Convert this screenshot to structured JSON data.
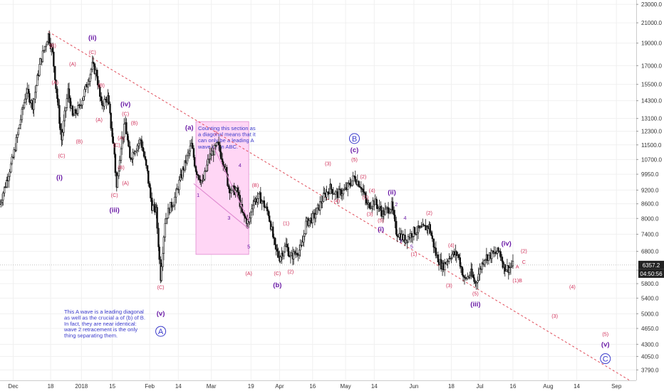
{
  "colors": {
    "bg": "#ffffff",
    "grid": "#f0f0f0",
    "axis_text": "#333333",
    "candle": "#111111",
    "trendline": "#e04d5a",
    "box_fill": "#ffd6f5",
    "box_stroke": "#e08ad0",
    "label_red": "#d0315a",
    "label_purple": "#6a1aa6",
    "label_blue": "#3a3acb",
    "price_tag_bg": "#222222",
    "price_tag_text": "#ffffff"
  },
  "chart_data": {
    "type": "candlestick",
    "title": "",
    "y_scale": "log",
    "ylim": [
      3600,
      23500
    ],
    "y_ticks": [
      23000.0,
      21000.0,
      19000.0,
      17000.0,
      15500.0,
      14300.0,
      13100.0,
      12300.0,
      11500.0,
      10700.0,
      9950.0,
      9200.0,
      8600.0,
      8000.0,
      7400.0,
      6800.0,
      6200.0,
      5800.0,
      5400.0,
      5000.0,
      4650.0,
      4300.0,
      4050.0,
      3790.0
    ],
    "y_tick_labels": [
      "23000.0",
      "21000.0",
      "19000.0",
      "17000.0",
      "15500.0",
      "14300.0",
      "13100.0",
      "12300.0",
      "11500.0",
      "10700.0",
      "9950.0",
      "9200.0",
      "8600.0",
      "8000.0",
      "7400.0",
      "6800.0",
      "6200.0",
      "5800.0",
      "5400.0",
      "5000.0",
      "4650.0",
      "4300.0",
      "4050.0",
      "3790.0"
    ],
    "x_range": [
      "2017-11-25",
      "2018-09-10"
    ],
    "x_ticks": [
      {
        "label": "Dec",
        "date": "2017-12-01"
      },
      {
        "label": "18",
        "date": "2017-12-18"
      },
      {
        "label": "2018",
        "date": "2018-01-01"
      },
      {
        "label": "15",
        "date": "2018-01-15"
      },
      {
        "label": "Feb",
        "date": "2018-02-01"
      },
      {
        "label": "14",
        "date": "2018-02-14"
      },
      {
        "label": "Mar",
        "date": "2018-03-01"
      },
      {
        "label": "19",
        "date": "2018-03-19"
      },
      {
        "label": "Apr",
        "date": "2018-04-01"
      },
      {
        "label": "16",
        "date": "2018-04-16"
      },
      {
        "label": "May",
        "date": "2018-05-01"
      },
      {
        "label": "14",
        "date": "2018-05-14"
      },
      {
        "label": "Jun",
        "date": "2018-06-01"
      },
      {
        "label": "18",
        "date": "2018-06-18"
      },
      {
        "label": "Jul",
        "date": "2018-07-01"
      },
      {
        "label": "16",
        "date": "2018-07-16"
      },
      {
        "label": "Aug",
        "date": "2018-08-01"
      },
      {
        "label": "14",
        "date": "2018-08-14"
      },
      {
        "label": "Sep",
        "date": "2018-09-01"
      }
    ],
    "price_path": [
      [
        "2017-11-25",
        8600
      ],
      [
        "2017-12-01",
        10800
      ],
      [
        "2017-12-07",
        15000
      ],
      [
        "2017-12-10",
        14000
      ],
      [
        "2017-12-13",
        17000
      ],
      [
        "2017-12-17",
        19800
      ],
      [
        "2017-12-19",
        18000
      ],
      [
        "2017-12-22",
        13000
      ],
      [
        "2017-12-23",
        11800
      ],
      [
        "2017-12-26",
        15000
      ],
      [
        "2017-12-28",
        13200
      ],
      [
        "2017-12-31",
        13800
      ],
      [
        "2018-01-03",
        15200
      ],
      [
        "2018-01-06",
        17000
      ],
      [
        "2018-01-08",
        16300
      ],
      [
        "2018-01-10",
        14000
      ],
      [
        "2018-01-13",
        14500
      ],
      [
        "2018-01-16",
        11000
      ],
      [
        "2018-01-17",
        9300
      ],
      [
        "2018-01-19",
        11500
      ],
      [
        "2018-01-21",
        12800
      ],
      [
        "2018-01-23",
        10700
      ],
      [
        "2018-01-25",
        11200
      ],
      [
        "2018-01-28",
        11800
      ],
      [
        "2018-01-31",
        10000
      ],
      [
        "2018-02-02",
        8500
      ],
      [
        "2018-02-04",
        8300
      ],
      [
        "2018-02-06",
        6000
      ],
      [
        "2018-02-08",
        7900
      ],
      [
        "2018-02-10",
        8400
      ],
      [
        "2018-02-12",
        8700
      ],
      [
        "2018-02-16",
        10100
      ],
      [
        "2018-02-20",
        11500
      ],
      [
        "2018-02-22",
        10200
      ],
      [
        "2018-02-25",
        9500
      ],
      [
        "2018-02-28",
        10800
      ],
      [
        "2018-03-04",
        11500
      ],
      [
        "2018-03-07",
        10400
      ],
      [
        "2018-03-09",
        9300
      ],
      [
        "2018-03-13",
        9100
      ],
      [
        "2018-03-15",
        8200
      ],
      [
        "2018-03-18",
        7800
      ],
      [
        "2018-03-20",
        8700
      ],
      [
        "2018-03-23",
        8900
      ],
      [
        "2018-03-27",
        8200
      ],
      [
        "2018-03-30",
        6900
      ],
      [
        "2018-04-01",
        6600
      ],
      [
        "2018-04-04",
        7000
      ],
      [
        "2018-04-06",
        6600
      ],
      [
        "2018-04-09",
        6800
      ],
      [
        "2018-04-11",
        6900
      ],
      [
        "2018-04-13",
        7800
      ],
      [
        "2018-04-17",
        8100
      ],
      [
        "2018-04-21",
        8900
      ],
      [
        "2018-04-24",
        9300
      ],
      [
        "2018-04-27",
        9000
      ],
      [
        "2018-05-01",
        9200
      ],
      [
        "2018-05-05",
        9800
      ],
      [
        "2018-05-08",
        9400
      ],
      [
        "2018-05-11",
        8500
      ],
      [
        "2018-05-14",
        8700
      ],
      [
        "2018-05-18",
        8200
      ],
      [
        "2018-05-22",
        8500
      ],
      [
        "2018-05-24",
        7500
      ],
      [
        "2018-05-28",
        7200
      ],
      [
        "2018-06-01",
        7500
      ],
      [
        "2018-06-05",
        7600
      ],
      [
        "2018-06-08",
        7700
      ],
      [
        "2018-06-11",
        6700
      ],
      [
        "2018-06-14",
        6300
      ],
      [
        "2018-06-18",
        6700
      ],
      [
        "2018-06-21",
        6700
      ],
      [
        "2018-06-24",
        5900
      ],
      [
        "2018-06-27",
        6100
      ],
      [
        "2018-06-29",
        5800
      ],
      [
        "2018-07-03",
        6600
      ],
      [
        "2018-07-07",
        6700
      ],
      [
        "2018-07-10",
        6800
      ],
      [
        "2018-07-12",
        6300
      ],
      [
        "2018-07-14",
        6250
      ],
      [
        "2018-07-16",
        6357
      ]
    ],
    "current_price": "6357.2",
    "time_tag": "04:50:56",
    "trendline": {
      "start": [
        "2017-12-17",
        20100
      ],
      "end": [
        "2018-09-07",
        3600
      ]
    },
    "highlight_box": {
      "from": [
        "2018-02-22",
        12900
      ],
      "to": [
        "2018-03-18",
        6700
      ]
    },
    "diagonal_lines": [
      [
        [
          "2018-02-21",
          9500
        ],
        [
          "2018-03-18",
          7600
        ]
      ],
      [
        [
          "2018-03-02",
          11400
        ],
        [
          "2018-03-18",
          7900
        ]
      ]
    ],
    "box_text": [
      "Counting this section as",
      "a diagonal means that it",
      "can only be a leading A",
      "wave of an ABC."
    ],
    "note_text": [
      "This A wave is a leading diagonal",
      "as well as the crucial a of (b) of B.",
      "In fact, they are near identical:",
      "wave 2 retracement is the only",
      "thing separating them."
    ],
    "labels": [
      {
        "t": "(B)",
        "d": "2017-12-19",
        "p": 18600,
        "c": "red"
      },
      {
        "t": "(A)",
        "d": "2017-12-20",
        "p": 15500,
        "c": "red"
      },
      {
        "t": "(C)",
        "d": "2017-12-23",
        "p": 10800,
        "c": "red"
      },
      {
        "t": "(i)",
        "d": "2017-12-22",
        "p": 9700,
        "c": "purple",
        "b": true
      },
      {
        "t": "(A)",
        "d": "2017-12-28",
        "p": 17000,
        "c": "red"
      },
      {
        "t": "(B)",
        "d": "2017-12-31",
        "p": 11600,
        "c": "red"
      },
      {
        "t": "(ii)",
        "d": "2018-01-06",
        "p": 19300,
        "c": "purple",
        "b": true
      },
      {
        "t": "(C)",
        "d": "2018-01-06",
        "p": 18000,
        "c": "red"
      },
      {
        "t": "(B)",
        "d": "2018-01-10",
        "p": 15300,
        "c": "red"
      },
      {
        "t": "(A)",
        "d": "2018-01-09",
        "p": 12900,
        "c": "red"
      },
      {
        "t": "(iv)",
        "d": "2018-01-21",
        "p": 13900,
        "c": "purple",
        "b": true
      },
      {
        "t": "(C)",
        "d": "2018-01-21",
        "p": 13300,
        "c": "red"
      },
      {
        "t": "(A)",
        "d": "2018-01-19",
        "p": 11800,
        "c": "red"
      },
      {
        "t": "(B)",
        "d": "2018-01-25",
        "p": 12700,
        "c": "red"
      },
      {
        "t": "(C)",
        "d": "2018-01-17",
        "p": 11400,
        "c": "red"
      },
      {
        "t": "(B)",
        "d": "2018-01-19",
        "p": 10200,
        "c": "red"
      },
      {
        "t": "(A)",
        "d": "2018-01-21",
        "p": 9450,
        "c": "red"
      },
      {
        "t": "(C)",
        "d": "2018-01-16",
        "p": 8900,
        "c": "red"
      },
      {
        "t": "(iii)",
        "d": "2018-01-16",
        "p": 8250,
        "c": "purple",
        "b": true
      },
      {
        "t": "(C)",
        "d": "2018-02-06",
        "p": 5650,
        "c": "red"
      },
      {
        "t": "(v)",
        "d": "2018-02-06",
        "p": 4950,
        "c": "purple",
        "b": true
      },
      {
        "t": "A",
        "d": "2018-02-06",
        "p": 4520,
        "c": "blue",
        "circle": true
      },
      {
        "t": "(a)",
        "d": "2018-02-19",
        "p": 12400,
        "c": "purple",
        "b": true
      },
      {
        "t": "2",
        "d": "2018-03-03",
        "p": 12100,
        "c": "red"
      },
      {
        "t": "4",
        "d": "2018-03-14",
        "p": 10300,
        "c": "purple"
      },
      {
        "t": "1",
        "d": "2018-02-23",
        "p": 8900,
        "c": "purple"
      },
      {
        "t": "3",
        "d": "2018-03-09",
        "p": 7950,
        "c": "purple"
      },
      {
        "t": "5",
        "d": "2018-03-18",
        "p": 6900,
        "c": "purple"
      },
      {
        "t": "(B)",
        "d": "2018-03-21",
        "p": 9350,
        "c": "red"
      },
      {
        "t": "(A)",
        "d": "2018-03-18",
        "p": 6050,
        "c": "red"
      },
      {
        "t": "(1)",
        "d": "2018-04-04",
        "p": 7750,
        "c": "red"
      },
      {
        "t": "(C)",
        "d": "2018-03-31",
        "p": 6050,
        "c": "red"
      },
      {
        "t": "(2)",
        "d": "2018-04-06",
        "p": 6100,
        "c": "red"
      },
      {
        "t": "(b)",
        "d": "2018-03-31",
        "p": 5700,
        "c": "purple",
        "b": true
      },
      {
        "t": "(3)",
        "d": "2018-04-23",
        "p": 10400,
        "c": "red"
      },
      {
        "t": "(4)",
        "d": "2018-04-27",
        "p": 8650,
        "c": "red"
      },
      {
        "t": "(5)",
        "d": "2018-05-05",
        "p": 10600,
        "c": "red"
      },
      {
        "t": "(c)",
        "d": "2018-05-05",
        "p": 11100,
        "c": "purple",
        "b": true
      },
      {
        "t": "B",
        "d": "2018-05-05",
        "p": 11700,
        "c": "blue",
        "circle": true
      },
      {
        "t": "(2)",
        "d": "2018-05-09",
        "p": 9750,
        "c": "red"
      },
      {
        "t": "(4)",
        "d": "2018-05-13",
        "p": 9100,
        "c": "red"
      },
      {
        "t": "(1)",
        "d": "2018-05-10",
        "p": 8800,
        "c": "red"
      },
      {
        "t": "(3)",
        "d": "2018-05-12",
        "p": 8100,
        "c": "red"
      },
      {
        "t": "(5)",
        "d": "2018-05-17",
        "p": 7850,
        "c": "red"
      },
      {
        "t": "(i)",
        "d": "2018-05-17",
        "p": 7500,
        "c": "purple",
        "b": true
      },
      {
        "t": "(ii)",
        "d": "2018-05-22",
        "p": 9000,
        "c": "purple",
        "b": true
      },
      {
        "t": "2",
        "d": "2018-05-24",
        "p": 8500,
        "c": "purple"
      },
      {
        "t": "4",
        "d": "2018-05-28",
        "p": 7950,
        "c": "purple"
      },
      {
        "t": "3",
        "d": "2018-05-26",
        "p": 7100,
        "c": "purple"
      },
      {
        "t": "5",
        "d": "2018-05-31",
        "p": 6900,
        "c": "purple"
      },
      {
        "t": "(1)",
        "d": "2018-06-01",
        "p": 6650,
        "c": "red"
      },
      {
        "t": "(2)",
        "d": "2018-06-08",
        "p": 8150,
        "c": "red"
      },
      {
        "t": "(4)",
        "d": "2018-06-18",
        "p": 6950,
        "c": "red"
      },
      {
        "t": "(3)",
        "d": "2018-06-17",
        "p": 5700,
        "c": "red"
      },
      {
        "t": "(5)",
        "d": "2018-06-29",
        "p": 5470,
        "c": "red"
      },
      {
        "t": "(iii)",
        "d": "2018-06-29",
        "p": 5180,
        "c": "purple",
        "b": true
      },
      {
        "t": "(iv)",
        "d": "2018-07-13",
        "p": 7000,
        "c": "purple",
        "b": true
      },
      {
        "t": "(2)",
        "d": "2018-07-21",
        "p": 6750,
        "c": "red"
      },
      {
        "t": "C",
        "d": "2018-07-21",
        "p": 6400,
        "c": "red"
      },
      {
        "t": "A",
        "d": "2018-07-18",
        "p": 6250,
        "c": "red"
      },
      {
        "t": "(1)B",
        "d": "2018-07-18",
        "p": 5840,
        "c": "red"
      },
      {
        "t": "(4)",
        "d": "2018-08-12",
        "p": 5660,
        "c": "red"
      },
      {
        "t": "(3)",
        "d": "2018-08-04",
        "p": 4900,
        "c": "red"
      },
      {
        "t": "(5)",
        "d": "2018-08-27",
        "p": 4480,
        "c": "red"
      },
      {
        "t": "(v)",
        "d": "2018-08-27",
        "p": 4250,
        "c": "purple",
        "b": true
      },
      {
        "t": "C",
        "d": "2018-08-27",
        "p": 3950,
        "c": "blue",
        "circle": true
      }
    ]
  }
}
